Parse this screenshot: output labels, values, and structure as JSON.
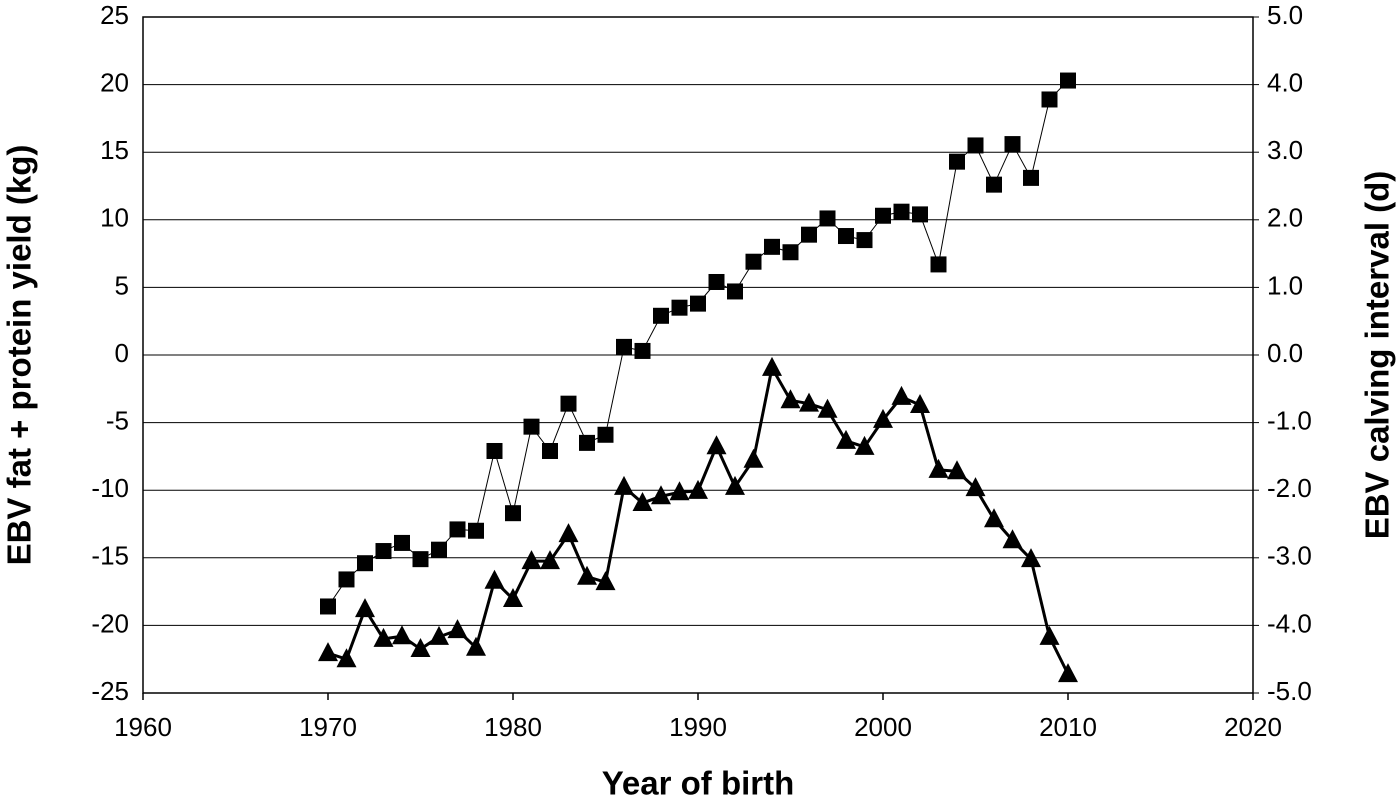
{
  "chart_data": {
    "type": "line",
    "x_label": "Year of birth",
    "y_label": "EBV fat + protein yield (kg)",
    "y2_label": "EBV calving interval (d)",
    "x": [
      1970,
      1971,
      1972,
      1973,
      1974,
      1975,
      1976,
      1977,
      1978,
      1979,
      1980,
      1981,
      1982,
      1983,
      1984,
      1985,
      1986,
      1987,
      1988,
      1989,
      1990,
      1991,
      1992,
      1993,
      1994,
      1995,
      1996,
      1997,
      1998,
      1999,
      2000,
      2001,
      2002,
      2003,
      2004,
      2005,
      2006,
      2007,
      2008,
      2009,
      2010
    ],
    "series": [
      {
        "color": "#000000",
        "marker": "square",
        "line_width": 1,
        "axis": "y",
        "values": [
          -18.6,
          -16.6,
          -15.4,
          -14.5,
          -13.9,
          -15.1,
          -14.4,
          -12.9,
          -13.0,
          -7.1,
          -11.7,
          -5.3,
          -7.1,
          -3.6,
          -6.5,
          -5.9,
          0.6,
          0.3,
          2.9,
          3.5,
          3.8,
          5.4,
          4.7,
          6.9,
          8.0,
          7.6,
          8.9,
          10.1,
          8.8,
          8.5,
          10.3,
          10.6,
          10.4,
          6.7,
          14.3,
          15.5,
          12.6,
          15.6,
          13.1,
          18.9,
          20.3
        ]
      },
      {
        "color": "#000000",
        "marker": "triangle",
        "line_width": 3,
        "axis": "y2",
        "values": [
          -4.41,
          -4.5,
          -3.76,
          -4.2,
          -4.16,
          -4.35,
          -4.17,
          -4.07,
          -4.33,
          -3.34,
          -3.61,
          -3.05,
          -3.05,
          -2.65,
          -3.28,
          -3.36,
          -1.95,
          -2.19,
          -2.09,
          -2.03,
          -2.01,
          -1.35,
          -1.95,
          -1.55,
          -0.19,
          -0.67,
          -0.72,
          -0.81,
          -1.27,
          -1.36,
          -0.96,
          -0.62,
          -0.74,
          -1.7,
          -1.72,
          -1.97,
          -2.43,
          -2.74,
          -3.02,
          -4.17,
          -4.72
        ]
      }
    ],
    "xlim": [
      1960,
      2020
    ],
    "xticks": [
      1960,
      1970,
      1980,
      1990,
      2000,
      2010,
      2020
    ],
    "ylim": [
      -25,
      25
    ],
    "yticks": [
      -25,
      -20,
      -15,
      -10,
      -5,
      0,
      5,
      10,
      15,
      20,
      25
    ],
    "y2lim": [
      -5,
      5
    ],
    "y2ticks": [
      {
        "value": -5,
        "label": "-5.0"
      },
      {
        "value": -4,
        "label": "-4.0"
      },
      {
        "value": -3,
        "label": "-3.0"
      },
      {
        "value": -2,
        "label": "-2.0"
      },
      {
        "value": -1,
        "label": "-1.0"
      },
      {
        "value": 0,
        "label": "0.0"
      },
      {
        "value": 1,
        "label": "1.0"
      },
      {
        "value": 2,
        "label": "2.0"
      },
      {
        "value": 3,
        "label": "3.0"
      },
      {
        "value": 4,
        "label": "4.0"
      },
      {
        "value": 5,
        "label": "5.0"
      }
    ],
    "grid": true
  }
}
